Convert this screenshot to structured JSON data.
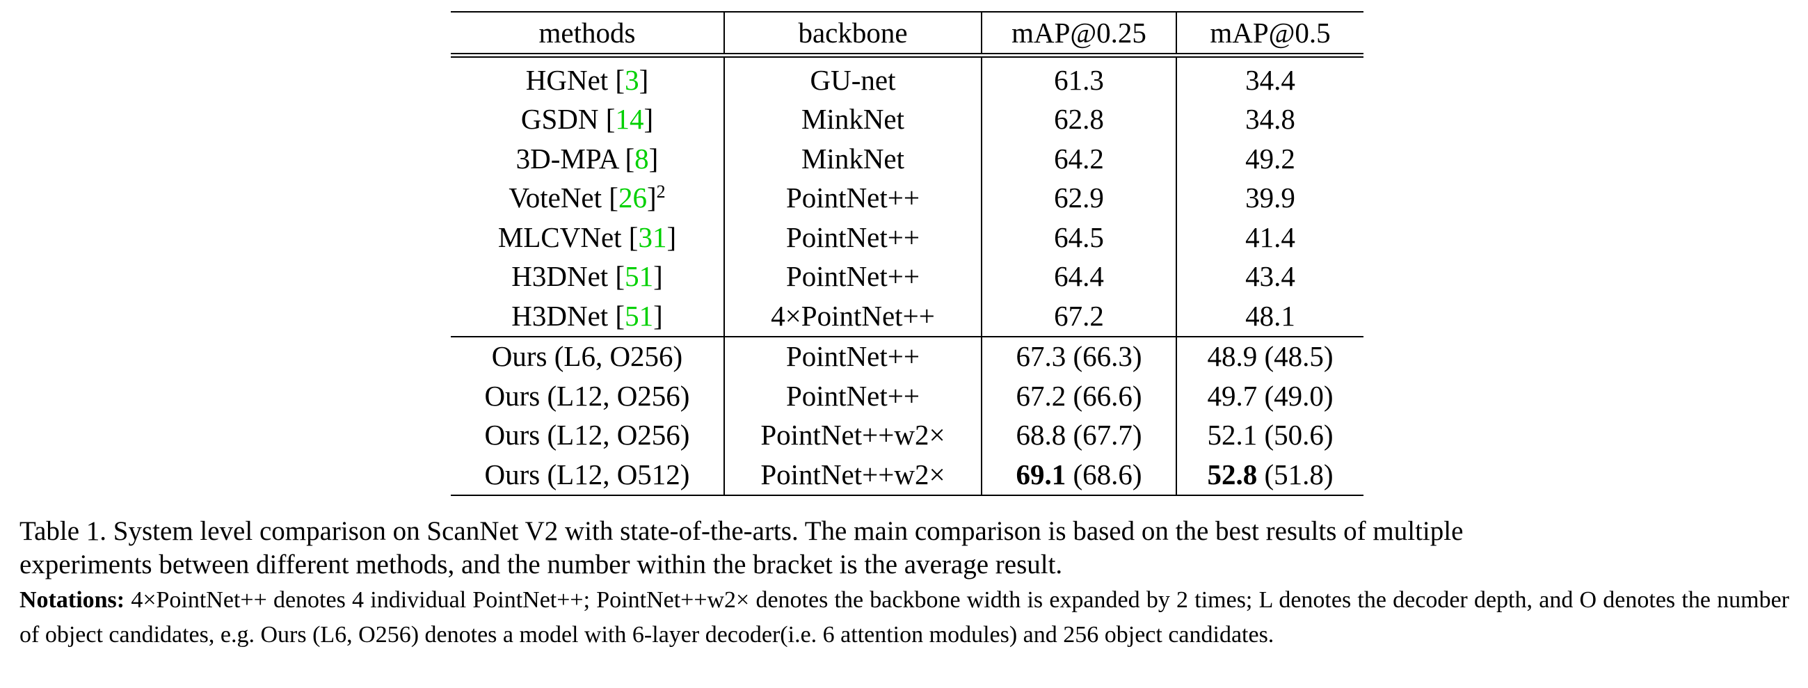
{
  "table": {
    "headers": {
      "methods": "methods",
      "backbone": "backbone",
      "map25": "mAP@0.25",
      "map50": "mAP@0.5"
    },
    "baseline_rows": [
      {
        "method": "HGNet",
        "cite": "3",
        "footnote": "",
        "backbone": "GU-net",
        "map25": "61.3",
        "map50": "34.4"
      },
      {
        "method": "GSDN",
        "cite": "14",
        "footnote": "",
        "backbone": "MinkNet",
        "map25": "62.8",
        "map50": "34.8"
      },
      {
        "method": "3D-MPA",
        "cite": "8",
        "footnote": "",
        "backbone": "MinkNet",
        "map25": "64.2",
        "map50": "49.2"
      },
      {
        "method": "VoteNet",
        "cite": "26",
        "footnote": "2",
        "backbone": "PointNet++",
        "map25": "62.9",
        "map50": "39.9"
      },
      {
        "method": "MLCVNet",
        "cite": "31",
        "footnote": "",
        "backbone": "PointNet++",
        "map25": "64.5",
        "map50": "41.4"
      },
      {
        "method": "H3DNet",
        "cite": "51",
        "footnote": "",
        "backbone": "PointNet++",
        "map25": "64.4",
        "map50": "43.4"
      },
      {
        "method": "H3DNet",
        "cite": "51",
        "footnote": "",
        "backbone": "4×PointNet++",
        "map25": "67.2",
        "map50": "48.1"
      }
    ],
    "ours_rows": [
      {
        "method": "Ours (L6, O256)",
        "backbone": "PointNet++",
        "map25_best": "67.3",
        "map25_avg": "(66.3)",
        "map50_best": "48.9",
        "map50_avg": "(48.5)"
      },
      {
        "method": "Ours (L12, O256)",
        "backbone": "PointNet++",
        "map25_best": "67.2",
        "map25_avg": "(66.6)",
        "map50_best": "49.7",
        "map50_avg": "(49.0)"
      },
      {
        "method": "Ours (L12, O256)",
        "backbone": "PointNet++w2×",
        "map25_best": "68.8",
        "map25_avg": "(67.7)",
        "map50_best": "52.1",
        "map50_avg": "(50.6)"
      },
      {
        "method": "Ours (L12, O512)",
        "backbone": "PointNet++w2×",
        "map25_best": "69.1",
        "map25_avg": "(68.6)",
        "map50_best": "52.8",
        "map50_avg": "(51.8)"
      }
    ]
  },
  "caption": {
    "line1": "Table 1. System level comparison on ScanNet V2 with state-of-the-arts.  The main comparison is based on the best results of multiple",
    "line2": "experiments between different methods, and the number within the bracket is the average result."
  },
  "notes": {
    "label": "Notations:",
    "text": "4×PointNet++ denotes 4 individual PointNet++; PointNet++w2× denotes the backbone width is expanded by 2 times; L denotes the decoder depth, and O denotes the number of object candidates, e.g. Ours (L6, O256) denotes a model with 6-layer decoder(i.e. 6 attention modules) and 256 object candidates."
  },
  "colors": {
    "citation": "#00d000",
    "text": "#000000"
  }
}
